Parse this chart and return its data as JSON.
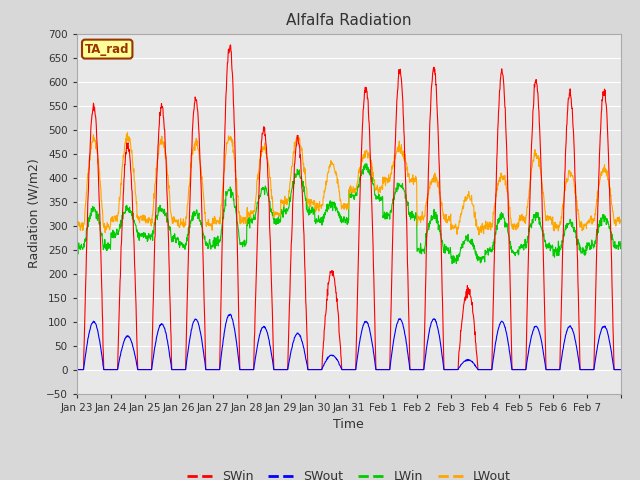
{
  "title": "Alfalfa Radiation",
  "xlabel": "Time",
  "ylabel": "Radiation (W/m2)",
  "ylim": [
    -50,
    700
  ],
  "yticks": [
    -50,
    0,
    50,
    100,
    150,
    200,
    250,
    300,
    350,
    400,
    450,
    500,
    550,
    600,
    650,
    700
  ],
  "xtick_labels": [
    "Jan 23",
    "Jan 24",
    "Jan 25",
    "Jan 26",
    "Jan 27",
    "Jan 28",
    "Jan 29",
    "Jan 30",
    "Jan 31",
    "Feb 1",
    "Feb 2",
    "Feb 3",
    "Feb 4",
    "Feb 5",
    "Feb 6",
    "Feb 7"
  ],
  "legend_label": "TA_rad",
  "series_labels": [
    "SWin",
    "SWout",
    "LWin",
    "LWout"
  ],
  "series_colors": [
    "#ff0000",
    "#0000ff",
    "#00cc00",
    "#ffa500"
  ],
  "bg_color": "#d8d8d8",
  "plot_bg_color": "#e8e8e8",
  "grid_color": "#ffffff",
  "legend_box_facecolor": "#ffff99",
  "legend_box_edgecolor": "#993300",
  "swin_peaks": [
    550,
    470,
    550,
    565,
    675,
    505,
    480,
    205,
    585,
    620,
    625,
    165,
    620,
    600,
    575,
    580
  ],
  "swout_peaks": [
    100,
    70,
    95,
    105,
    115,
    90,
    75,
    30,
    100,
    105,
    105,
    20,
    100,
    90,
    90,
    90
  ],
  "lwin_base": [
    255,
    280,
    275,
    260,
    265,
    310,
    330,
    310,
    360,
    320,
    248,
    232,
    245,
    258,
    248,
    258
  ],
  "lwin_peaks": [
    295,
    300,
    295,
    285,
    325,
    340,
    375,
    330,
    380,
    340,
    275,
    260,
    272,
    275,
    262,
    275
  ],
  "lwout_base": [
    300,
    315,
    310,
    305,
    310,
    325,
    350,
    340,
    375,
    395,
    315,
    295,
    300,
    315,
    300,
    310
  ],
  "lwout_peaks": [
    440,
    450,
    435,
    430,
    435,
    425,
    445,
    415,
    410,
    415,
    355,
    350,
    360,
    405,
    365,
    375
  ],
  "n_days": 16,
  "pts_per_day": 96
}
